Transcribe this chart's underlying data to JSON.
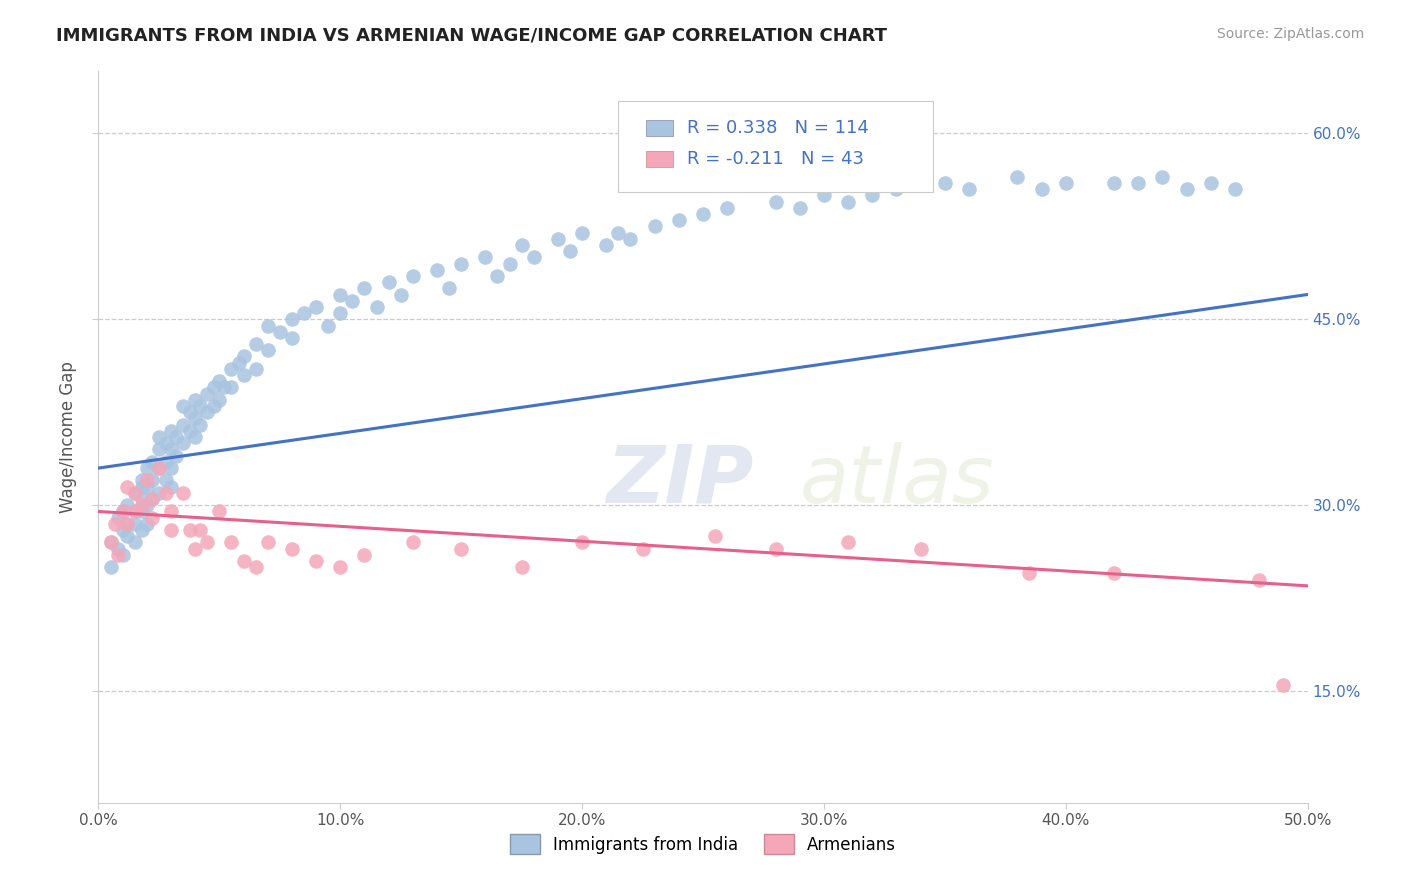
{
  "title": "IMMIGRANTS FROM INDIA VS ARMENIAN WAGE/INCOME GAP CORRELATION CHART",
  "source": "Source: ZipAtlas.com",
  "ylabel": "Wage/Income Gap",
  "xmin": 0.0,
  "xmax": 0.5,
  "ymin": 0.06,
  "ymax": 0.65,
  "xtick_labels": [
    "0.0%",
    "10.0%",
    "20.0%",
    "30.0%",
    "40.0%",
    "50.0%"
  ],
  "xtick_vals": [
    0.0,
    0.1,
    0.2,
    0.3,
    0.4,
    0.5
  ],
  "ytick_labels": [
    "15.0%",
    "30.0%",
    "45.0%",
    "60.0%"
  ],
  "ytick_vals": [
    0.15,
    0.3,
    0.45,
    0.6
  ],
  "india_R": 0.338,
  "india_N": 114,
  "armenia_R": -0.211,
  "armenia_N": 43,
  "india_color": "#a8c4e0",
  "armenia_color": "#f4a7b9",
  "india_line_color": "#4472c4",
  "armenia_line_color": "#e8608a",
  "legend_label_india": "Immigrants from India",
  "legend_label_armenia": "Armenians",
  "watermark_zip": "ZIP",
  "watermark_atlas": "atlas",
  "background_color": "#ffffff",
  "india_line_x0": 0.0,
  "india_line_y0": 0.33,
  "india_line_x1": 0.5,
  "india_line_y1": 0.47,
  "armenia_line_x0": 0.0,
  "armenia_line_y0": 0.295,
  "armenia_line_x1": 0.5,
  "armenia_line_y1": 0.235,
  "india_scatter_x": [
    0.005,
    0.005,
    0.008,
    0.008,
    0.01,
    0.01,
    0.01,
    0.012,
    0.012,
    0.012,
    0.015,
    0.015,
    0.015,
    0.015,
    0.018,
    0.018,
    0.018,
    0.018,
    0.018,
    0.02,
    0.02,
    0.02,
    0.02,
    0.022,
    0.022,
    0.022,
    0.025,
    0.025,
    0.025,
    0.025,
    0.028,
    0.028,
    0.028,
    0.03,
    0.03,
    0.03,
    0.03,
    0.032,
    0.032,
    0.035,
    0.035,
    0.035,
    0.038,
    0.038,
    0.04,
    0.04,
    0.04,
    0.042,
    0.042,
    0.045,
    0.045,
    0.048,
    0.048,
    0.05,
    0.05,
    0.052,
    0.055,
    0.055,
    0.058,
    0.06,
    0.06,
    0.065,
    0.065,
    0.07,
    0.07,
    0.075,
    0.08,
    0.08,
    0.085,
    0.09,
    0.095,
    0.1,
    0.1,
    0.105,
    0.11,
    0.115,
    0.12,
    0.125,
    0.13,
    0.14,
    0.145,
    0.15,
    0.16,
    0.165,
    0.17,
    0.175,
    0.18,
    0.19,
    0.195,
    0.2,
    0.21,
    0.215,
    0.22,
    0.23,
    0.24,
    0.25,
    0.26,
    0.28,
    0.29,
    0.3,
    0.31,
    0.32,
    0.33,
    0.35,
    0.36,
    0.38,
    0.39,
    0.4,
    0.42,
    0.43,
    0.44,
    0.45,
    0.46,
    0.47
  ],
  "india_scatter_y": [
    0.27,
    0.25,
    0.29,
    0.265,
    0.28,
    0.295,
    0.26,
    0.3,
    0.285,
    0.275,
    0.31,
    0.295,
    0.285,
    0.27,
    0.32,
    0.305,
    0.295,
    0.315,
    0.28,
    0.33,
    0.315,
    0.3,
    0.285,
    0.335,
    0.32,
    0.305,
    0.345,
    0.33,
    0.355,
    0.31,
    0.35,
    0.335,
    0.32,
    0.36,
    0.345,
    0.33,
    0.315,
    0.355,
    0.34,
    0.365,
    0.38,
    0.35,
    0.375,
    0.36,
    0.385,
    0.37,
    0.355,
    0.38,
    0.365,
    0.39,
    0.375,
    0.395,
    0.38,
    0.4,
    0.385,
    0.395,
    0.41,
    0.395,
    0.415,
    0.42,
    0.405,
    0.43,
    0.41,
    0.445,
    0.425,
    0.44,
    0.45,
    0.435,
    0.455,
    0.46,
    0.445,
    0.47,
    0.455,
    0.465,
    0.475,
    0.46,
    0.48,
    0.47,
    0.485,
    0.49,
    0.475,
    0.495,
    0.5,
    0.485,
    0.495,
    0.51,
    0.5,
    0.515,
    0.505,
    0.52,
    0.51,
    0.52,
    0.515,
    0.525,
    0.53,
    0.535,
    0.54,
    0.545,
    0.54,
    0.55,
    0.545,
    0.55,
    0.555,
    0.56,
    0.555,
    0.565,
    0.555,
    0.56,
    0.56,
    0.56,
    0.565,
    0.555,
    0.56,
    0.555
  ],
  "armenia_scatter_x": [
    0.005,
    0.007,
    0.008,
    0.01,
    0.012,
    0.012,
    0.015,
    0.015,
    0.018,
    0.02,
    0.022,
    0.022,
    0.025,
    0.028,
    0.03,
    0.03,
    0.035,
    0.038,
    0.04,
    0.042,
    0.045,
    0.05,
    0.055,
    0.06,
    0.065,
    0.07,
    0.08,
    0.09,
    0.1,
    0.11,
    0.13,
    0.15,
    0.175,
    0.2,
    0.225,
    0.255,
    0.28,
    0.31,
    0.34,
    0.385,
    0.42,
    0.48,
    0.49
  ],
  "armenia_scatter_y": [
    0.27,
    0.285,
    0.26,
    0.295,
    0.315,
    0.285,
    0.31,
    0.295,
    0.3,
    0.32,
    0.305,
    0.29,
    0.33,
    0.31,
    0.295,
    0.28,
    0.31,
    0.28,
    0.265,
    0.28,
    0.27,
    0.295,
    0.27,
    0.255,
    0.25,
    0.27,
    0.265,
    0.255,
    0.25,
    0.26,
    0.27,
    0.265,
    0.25,
    0.27,
    0.265,
    0.275,
    0.265,
    0.27,
    0.265,
    0.245,
    0.245,
    0.24,
    0.155
  ]
}
